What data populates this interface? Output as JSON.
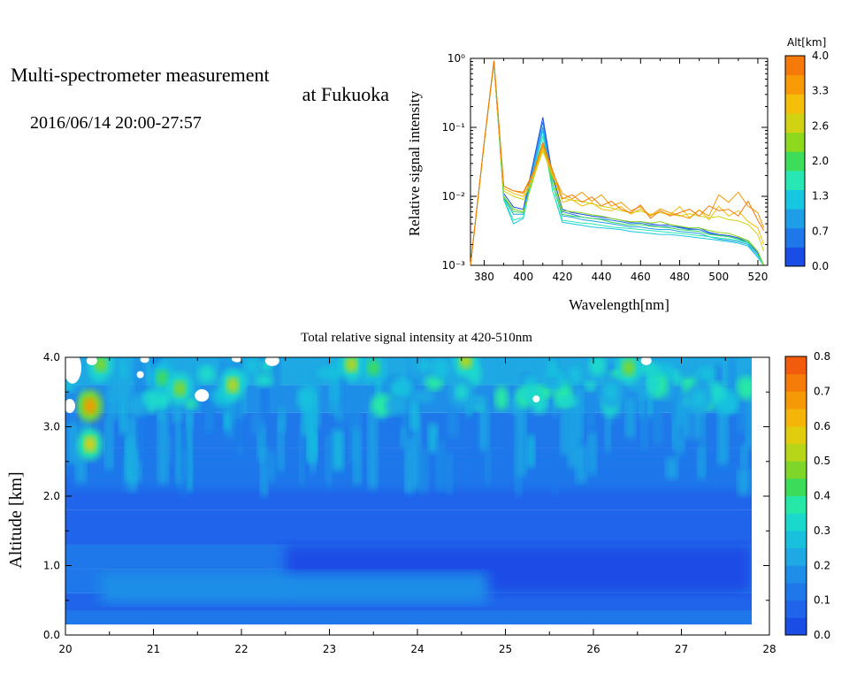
{
  "title": {
    "line1": "Multi-spectrometer measurement",
    "line2": "at Fukuoka",
    "line3": "2016/06/14 20:00-27:57"
  },
  "chart_data": [
    {
      "type": "line",
      "xlabel": "Wavelength[nm]",
      "ylabel": "Relative signal intensity",
      "yscale": "log",
      "xlim": [
        373,
        525
      ],
      "ylim": [
        0.001,
        1
      ],
      "xticks": [
        "380",
        "400",
        "420",
        "440",
        "460",
        "480",
        "500",
        "520"
      ],
      "yticks": [
        "10⁻³",
        "10⁻²",
        "10⁻¹",
        "10⁰"
      ],
      "colorbar": {
        "title": "Alt[km]",
        "ticks": [
          "0.0",
          "0.7",
          "1.3",
          "2.0",
          "2.6",
          "3.3",
          "4.0"
        ],
        "colors": [
          "#1a4ce6",
          "#1f78ea",
          "#1e9ee6",
          "#17c6e0",
          "#27e8b4",
          "#3ddc5a",
          "#8ed81e",
          "#d0d212",
          "#f5be08",
          "#f79a06",
          "#f57a0a"
        ]
      },
      "x": [
        373,
        380,
        385,
        390,
        395,
        400,
        405,
        410,
        415,
        420,
        425,
        430,
        435,
        440,
        445,
        450,
        455,
        460,
        465,
        470,
        475,
        480,
        485,
        490,
        495,
        500,
        505,
        510,
        515,
        520,
        523
      ],
      "series": [
        {
          "color": "#1a4ce6",
          "values": [
            0.001,
            0.06,
            0.92,
            0.011,
            0.007,
            0.0065,
            0.03,
            0.14,
            0.02,
            0.0065,
            0.0058,
            0.0055,
            0.0052,
            0.005,
            0.0048,
            0.0045,
            0.0042,
            0.0043,
            0.004,
            0.0038,
            0.0039,
            0.0036,
            0.0034,
            0.0035,
            0.003,
            0.0028,
            0.0027,
            0.0025,
            0.0022,
            0.0015,
            0.001
          ]
        },
        {
          "color": "#1f78ea",
          "values": [
            0.001,
            0.06,
            0.9,
            0.01,
            0.0065,
            0.006,
            0.028,
            0.12,
            0.018,
            0.006,
            0.0055,
            0.005,
            0.0048,
            0.0047,
            0.0045,
            0.0043,
            0.004,
            0.0041,
            0.0038,
            0.0036,
            0.0037,
            0.0035,
            0.0033,
            0.0033,
            0.0029,
            0.0027,
            0.0026,
            0.0024,
            0.0021,
            0.0014,
            0.001
          ]
        },
        {
          "color": "#1e9ee6",
          "values": [
            0.001,
            0.06,
            0.88,
            0.0095,
            0.0055,
            0.0055,
            0.025,
            0.1,
            0.015,
            0.0052,
            0.005,
            0.0046,
            0.0044,
            0.0042,
            0.004,
            0.0038,
            0.0036,
            0.0036,
            0.0034,
            0.0033,
            0.0033,
            0.0031,
            0.003,
            0.0029,
            0.0026,
            0.0024,
            0.0023,
            0.0022,
            0.002,
            0.0013,
            0.001
          ]
        },
        {
          "color": "#17c6e0",
          "values": [
            0.001,
            0.06,
            0.87,
            0.009,
            0.004,
            0.0048,
            0.022,
            0.09,
            0.012,
            0.0042,
            0.004,
            0.0038,
            0.0036,
            0.0035,
            0.0034,
            0.0033,
            0.0031,
            0.003,
            0.0029,
            0.0028,
            0.0028,
            0.0027,
            0.0026,
            0.0025,
            0.0024,
            0.0023,
            0.0022,
            0.0021,
            0.0019,
            0.0013,
            0.001
          ]
        },
        {
          "color": "#27e8b4",
          "values": [
            0.001,
            0.06,
            0.87,
            0.0092,
            0.0045,
            0.005,
            0.02,
            0.075,
            0.012,
            0.0045,
            0.0043,
            0.0041,
            0.004,
            0.0038,
            0.0036,
            0.0035,
            0.0034,
            0.0033,
            0.0032,
            0.0031,
            0.003,
            0.0029,
            0.0028,
            0.0027,
            0.0026,
            0.0025,
            0.0024,
            0.0023,
            0.0021,
            0.0014,
            0.001
          ]
        },
        {
          "color": "#3ddc5a",
          "values": [
            0.001,
            0.06,
            0.88,
            0.0098,
            0.006,
            0.0058,
            0.018,
            0.06,
            0.015,
            0.0055,
            0.0052,
            0.005,
            0.0048,
            0.0046,
            0.0042,
            0.004,
            0.0038,
            0.0039,
            0.0037,
            0.0036,
            0.0035,
            0.0033,
            0.0032,
            0.0031,
            0.0028,
            0.0027,
            0.0026,
            0.0024,
            0.0022,
            0.0016,
            0.001
          ]
        },
        {
          "color": "#8ed81e",
          "values": [
            0.001,
            0.06,
            0.88,
            0.01,
            0.0065,
            0.006,
            0.017,
            0.05,
            0.018,
            0.0062,
            0.006,
            0.0058,
            0.0054,
            0.0052,
            0.0048,
            0.0045,
            0.0043,
            0.0043,
            0.0041,
            0.0043,
            0.0039,
            0.0037,
            0.0035,
            0.0035,
            0.0032,
            0.003,
            0.0029,
            0.0026,
            0.0023,
            0.0016,
            0.001
          ]
        },
        {
          "color": "#d0d212",
          "values": [
            0.001,
            0.06,
            0.89,
            0.012,
            0.01,
            0.009,
            0.018,
            0.045,
            0.02,
            0.0095,
            0.0088,
            0.0085,
            0.0078,
            0.0072,
            0.0068,
            0.0062,
            0.0058,
            0.0061,
            0.0055,
            0.0058,
            0.0055,
            0.0052,
            0.0056,
            0.0052,
            0.0049,
            0.0051,
            0.0046,
            0.0044,
            0.0039,
            0.0028,
            0.0016
          ]
        },
        {
          "color": "#f5be08",
          "values": [
            0.001,
            0.06,
            0.9,
            0.013,
            0.011,
            0.01,
            0.019,
            0.05,
            0.021,
            0.0082,
            0.009,
            0.0072,
            0.0081,
            0.0065,
            0.0062,
            0.0071,
            0.0055,
            0.0066,
            0.0052,
            0.0061,
            0.0054,
            0.0071,
            0.0049,
            0.0064,
            0.0046,
            0.0072,
            0.0052,
            0.0062,
            0.0043,
            0.0035,
            0.002
          ]
        },
        {
          "color": "#f79a06",
          "values": [
            0.001,
            0.06,
            0.91,
            0.014,
            0.012,
            0.011,
            0.021,
            0.055,
            0.022,
            0.011,
            0.0092,
            0.0115,
            0.0085,
            0.0105,
            0.0072,
            0.0082,
            0.0062,
            0.0071,
            0.0052,
            0.0066,
            0.0058,
            0.0053,
            0.0048,
            0.0063,
            0.0052,
            0.0105,
            0.0082,
            0.0115,
            0.0072,
            0.0058,
            0.0035
          ]
        },
        {
          "color": "#f57a0a",
          "values": [
            0.001,
            0.06,
            0.92,
            0.014,
            0.012,
            0.0115,
            0.022,
            0.06,
            0.024,
            0.0092,
            0.0105,
            0.0082,
            0.0098,
            0.0073,
            0.0085,
            0.0065,
            0.0058,
            0.0075,
            0.0048,
            0.0062,
            0.0052,
            0.0058,
            0.0065,
            0.0052,
            0.0073,
            0.0062,
            0.0065,
            0.0052,
            0.0085,
            0.0045,
            0.0032
          ]
        }
      ]
    },
    {
      "type": "heatmap",
      "title": "Total relative signal intensity at 420-510nm",
      "ylabel": "Altitude [km]",
      "xlim": [
        20,
        28
      ],
      "ylim": [
        0,
        4
      ],
      "xticks": [
        "20",
        "21",
        "22",
        "23",
        "24",
        "25",
        "26",
        "27",
        "28"
      ],
      "yticks": [
        "0.0",
        "1.0",
        "2.0",
        "3.0",
        "4.0"
      ],
      "data_extent": {
        "x": [
          20,
          27.8
        ],
        "y": [
          0.15,
          4.0
        ]
      },
      "colorbar": {
        "ticks": [
          "0.0",
          "0.1",
          "0.2",
          "0.3",
          "0.4",
          "0.5",
          "0.6",
          "0.7",
          "0.8"
        ],
        "colors": [
          "#1a4ce6",
          "#1f64ea",
          "#1f78ea",
          "#1e8ee8",
          "#1ea8e4",
          "#19c0de",
          "#1ad8cc",
          "#25e8a6",
          "#3cdc5a",
          "#7fd62a",
          "#b8d618",
          "#e2cc0e",
          "#f5b408",
          "#f59a06",
          "#f57c08",
          "#f25a0c"
        ]
      },
      "hotspots": [
        {
          "t": 20.28,
          "alt": 3.3,
          "v": 0.7
        },
        {
          "t": 20.28,
          "alt": 2.75,
          "v": 0.55
        },
        {
          "t": 20.4,
          "alt": 3.9,
          "v": 0.45
        },
        {
          "t": 21.1,
          "alt": 3.7,
          "v": 0.4
        },
        {
          "t": 21.3,
          "alt": 3.55,
          "v": 0.45
        },
        {
          "t": 21.9,
          "alt": 3.6,
          "v": 0.5
        },
        {
          "t": 23.25,
          "alt": 3.9,
          "v": 0.5
        },
        {
          "t": 23.5,
          "alt": 3.85,
          "v": 0.4
        },
        {
          "t": 24.55,
          "alt": 3.95,
          "v": 0.5
        },
        {
          "t": 24.5,
          "alt": 3.5,
          "v": 0.35
        },
        {
          "t": 26.4,
          "alt": 3.85,
          "v": 0.45
        },
        {
          "t": 26.2,
          "alt": 3.5,
          "v": 0.3
        },
        {
          "t": 27.2,
          "alt": 3.4,
          "v": 0.3
        }
      ]
    }
  ]
}
